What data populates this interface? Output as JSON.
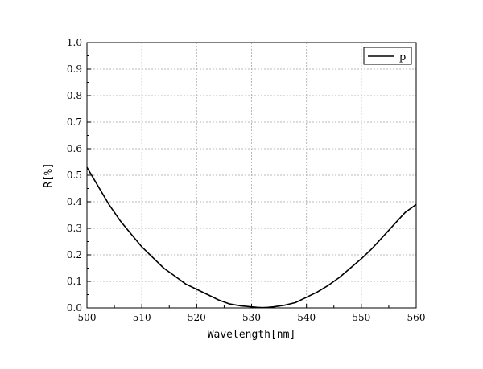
{
  "chart_data": {
    "type": "line",
    "title": "",
    "xlabel": "Wavelength[nm]",
    "ylabel": "R[%]",
    "xlim": [
      500,
      560
    ],
    "ylim": [
      0.0,
      1.0
    ],
    "x_ticks": [
      "500",
      "510",
      "520",
      "530",
      "540",
      "550",
      "560"
    ],
    "y_ticks": [
      "0.0",
      "0.1",
      "0.2",
      "0.3",
      "0.4",
      "0.5",
      "0.6",
      "0.7",
      "0.8",
      "0.9",
      "1.0"
    ],
    "grid": true,
    "legend_position": "top-right",
    "series": [
      {
        "name": "p",
        "color": "#000000",
        "x": [
          500,
          502,
          504,
          506,
          508,
          510,
          512,
          514,
          516,
          518,
          520,
          522,
          524,
          526,
          528,
          530,
          531,
          532,
          533,
          534,
          536,
          538,
          540,
          542,
          544,
          546,
          548,
          550,
          552,
          554,
          556,
          558,
          560
        ],
        "y": [
          0.53,
          0.46,
          0.39,
          0.33,
          0.28,
          0.23,
          0.19,
          0.15,
          0.12,
          0.09,
          0.07,
          0.05,
          0.03,
          0.015,
          0.008,
          0.004,
          0.002,
          0.001,
          0.002,
          0.004,
          0.01,
          0.02,
          0.04,
          0.06,
          0.085,
          0.115,
          0.15,
          0.185,
          0.225,
          0.27,
          0.315,
          0.36,
          0.39
        ]
      }
    ]
  }
}
